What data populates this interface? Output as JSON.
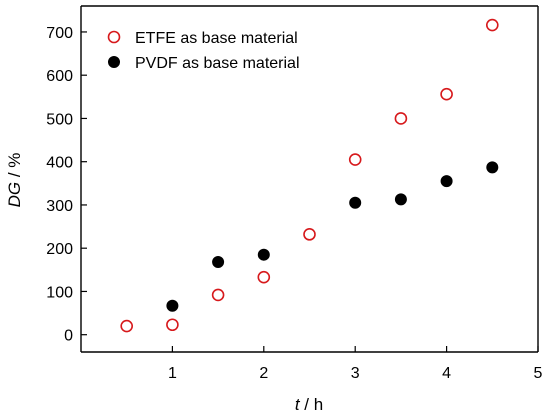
{
  "chart_data": {
    "type": "scatter",
    "title": "",
    "xlabel": {
      "var": "t",
      "unit": " / h"
    },
    "ylabel": {
      "var": "DG",
      "unit": " / %"
    },
    "xlim": [
      0,
      5
    ],
    "ylim": [
      -40,
      760
    ],
    "xticks": [
      1,
      2,
      3,
      4,
      5
    ],
    "yticks": [
      0,
      100,
      200,
      300,
      400,
      500,
      600,
      700
    ],
    "grid": false,
    "legend_position": "top-left",
    "series": [
      {
        "name": "ETFE as base material",
        "marker": "open-circle",
        "color": "#d7191c",
        "x": [
          0.5,
          1.0,
          1.5,
          2.0,
          2.5,
          3.0,
          3.5,
          4.0,
          4.5
        ],
        "y": [
          20,
          23,
          92,
          133,
          232,
          405,
          500,
          556,
          716
        ]
      },
      {
        "name": "PVDF as base material",
        "marker": "filled-circle",
        "color": "#000000",
        "x": [
          1.0,
          1.5,
          2.0,
          3.0,
          3.5,
          4.0,
          4.5
        ],
        "y": [
          67,
          168,
          185,
          305,
          313,
          355,
          387
        ]
      }
    ]
  }
}
